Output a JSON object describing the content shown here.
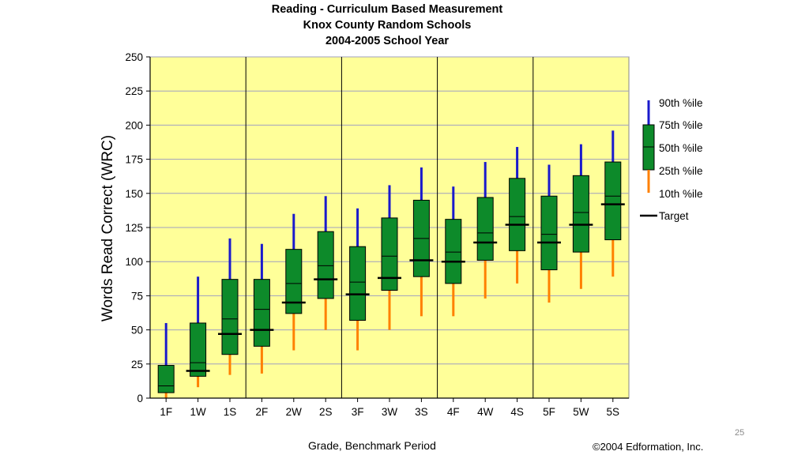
{
  "slide": {
    "page_number": "25",
    "credit": "©2004 Edformation, Inc."
  },
  "chart_data": {
    "type": "box",
    "title": [
      "Reading - Curriculum Based Measurement",
      "Knox County Random Schools",
      "2004-2005 School Year"
    ],
    "xlabel": "Grade, Benchmark Period",
    "ylabel": "Words Read Correct (WRC)",
    "ylim": [
      0,
      250
    ],
    "yticks": [
      0,
      25,
      50,
      75,
      100,
      125,
      150,
      175,
      200,
      225,
      250
    ],
    "grid": true,
    "background": "#ffff99",
    "groups": [
      "1",
      "2",
      "3",
      "4",
      "5"
    ],
    "categories": [
      "1F",
      "1W",
      "1S",
      "2F",
      "2W",
      "2S",
      "3F",
      "3W",
      "3S",
      "4F",
      "4W",
      "4S",
      "5F",
      "5W",
      "5S"
    ],
    "p10": [
      0,
      8,
      17,
      18,
      35,
      50,
      35,
      50,
      60,
      60,
      73,
      84,
      70,
      80,
      89
    ],
    "p25": [
      4,
      16,
      32,
      38,
      62,
      73,
      57,
      79,
      89,
      84,
      101,
      108,
      94,
      107,
      116
    ],
    "p50": [
      9,
      26,
      58,
      65,
      84,
      97,
      85,
      104,
      117,
      107,
      121,
      133,
      120,
      136,
      148
    ],
    "p75": [
      24,
      55,
      87,
      87,
      109,
      122,
      111,
      132,
      145,
      131,
      147,
      161,
      148,
      163,
      173
    ],
    "p90": [
      55,
      89,
      117,
      113,
      135,
      148,
      139,
      156,
      169,
      155,
      173,
      184,
      171,
      186,
      196
    ],
    "target": [
      null,
      20,
      47,
      50,
      70,
      87,
      76,
      88,
      101,
      100,
      114,
      127,
      114,
      127,
      142
    ],
    "colors": {
      "whisker_high": "#1a1acc",
      "whisker_low": "#ff8000",
      "box": "#0d8a2a",
      "target": "#000000",
      "grid": "#a0a0c0"
    },
    "legend": {
      "position": "right",
      "entries": [
        "90th %ile",
        "75th %ile",
        "50th %ile",
        "25th %ile",
        "10th %ile",
        "Target"
      ]
    }
  }
}
